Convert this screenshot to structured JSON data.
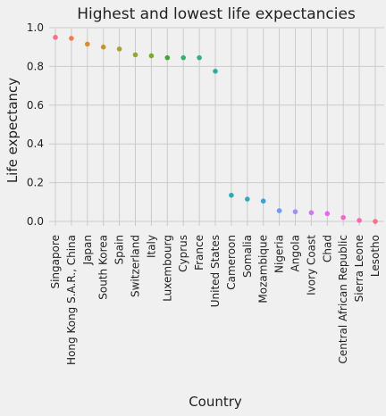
{
  "chart_data": {
    "type": "scatter",
    "title": "Highest and lowest life expectancies",
    "xlabel": "Country",
    "ylabel": "Life expectancy",
    "ylim": [
      -0.02,
      1.0
    ],
    "yticks": [
      "0.0",
      "0.2",
      "0.4",
      "0.6",
      "0.8",
      "1.0"
    ],
    "grid": true,
    "categories": [
      "Singapore",
      "Hong Kong S.A.R., China",
      "Japan",
      "South Korea",
      "Spain",
      "Switzerland",
      "Italy",
      "Luxembourg",
      "Cyprus",
      "France",
      "United States",
      "Cameroon",
      "Somalia",
      "Mozambique",
      "Nigeria",
      "Angola",
      "Ivory Coast",
      "Chad",
      "Central African Republic",
      "Sierra Leone",
      "Lesotho"
    ],
    "values": [
      0.95,
      0.945,
      0.915,
      0.9,
      0.89,
      0.86,
      0.855,
      0.845,
      0.845,
      0.845,
      0.775,
      0.135,
      0.115,
      0.105,
      0.055,
      0.05,
      0.045,
      0.04,
      0.02,
      0.005,
      0.0
    ],
    "colors": [
      "#f77189",
      "#f57a4f",
      "#d98d32",
      "#c39532",
      "#ae9d31",
      "#97a431",
      "#76ac32",
      "#3ca832",
      "#33b16f",
      "#35ad89",
      "#36ab9b",
      "#37a8aa",
      "#38a7bb",
      "#39a4d1",
      "#6e9bf4",
      "#a38ef4",
      "#cc7af4",
      "#f45df4",
      "#f565cc",
      "#f66bad",
      "#f77189"
    ]
  }
}
